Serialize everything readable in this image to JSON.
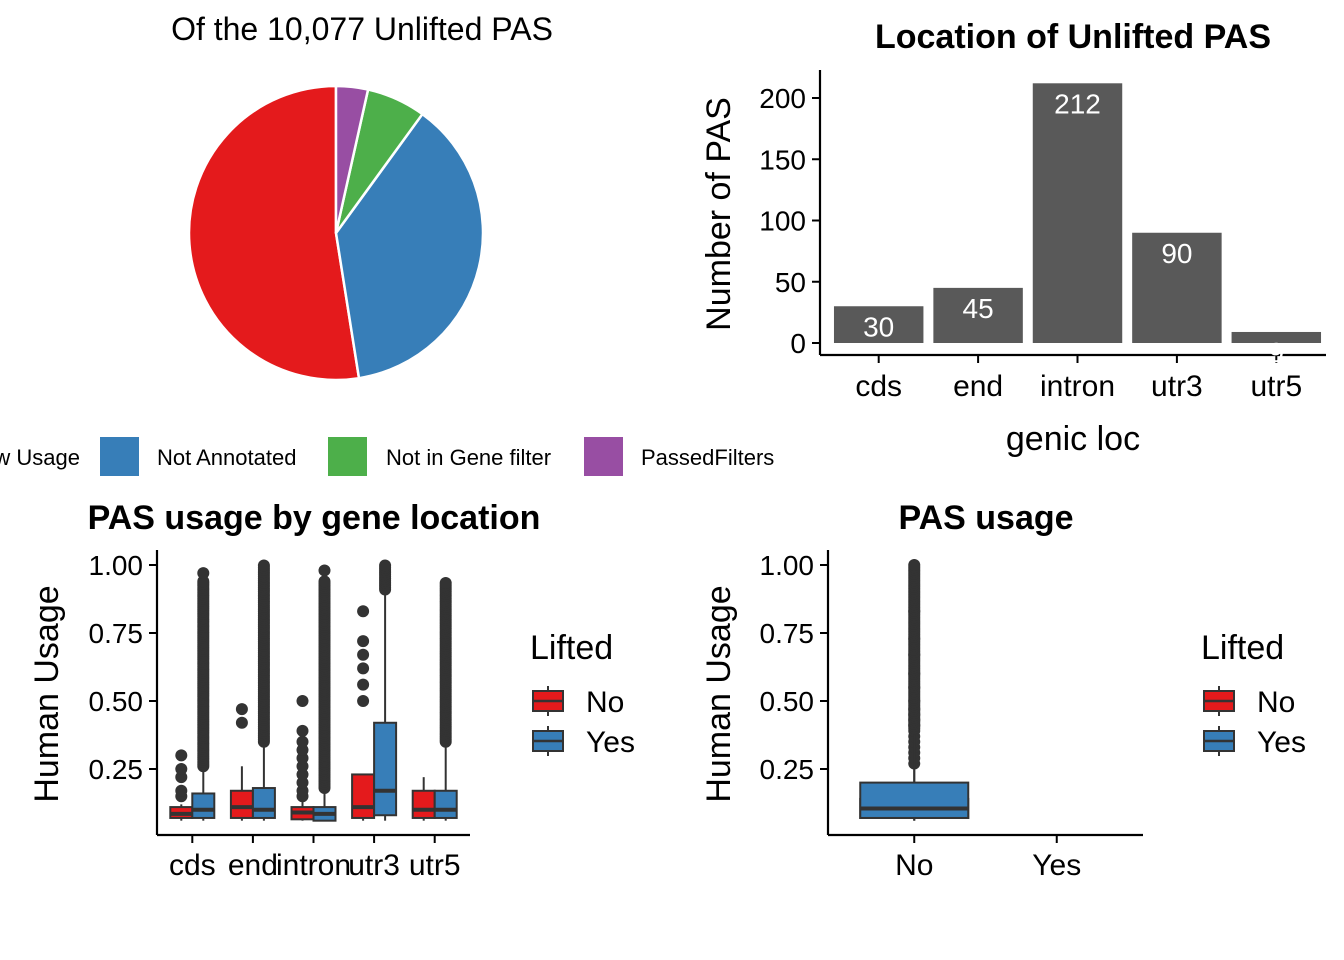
{
  "colors": {
    "red": "#E41A1C",
    "blue": "#377EB8",
    "green": "#4DAF4A",
    "purple": "#984EA3",
    "bar": "#595959",
    "outlier": "#333333"
  },
  "chart_data": [
    {
      "type": "pie",
      "title": "Of the 10,077 Unlifted PAS",
      "legend_position": "bottom",
      "labels": [
        "Low Usage",
        "Not Annotated",
        "Not in Gene filter",
        "PassedFilters"
      ],
      "legend_visible_labels": [
        "w Usage",
        "Not Annotated",
        "Not in Gene filter",
        "PassedFilters"
      ],
      "values": [
        52.5,
        37.5,
        6.5,
        3.5
      ]
    },
    {
      "type": "bar",
      "title": "Location of Unlifted PAS",
      "xlabel": "genic loc",
      "ylabel": "Number of PAS",
      "categories": [
        "cds",
        "end",
        "intron",
        "utr3",
        "utr5"
      ],
      "values": [
        30,
        45,
        212,
        90,
        9
      ],
      "ylim": [
        0,
        222
      ],
      "yticks": [
        0,
        50,
        100,
        150,
        200
      ],
      "data_labels": [
        "30",
        "45",
        "212",
        "90",
        "9"
      ]
    },
    {
      "type": "boxplot",
      "title": "PAS usage by gene location",
      "xlabel": "",
      "ylabel": "Human Usage",
      "categories": [
        "cds",
        "end",
        "intron",
        "utr3",
        "utr5"
      ],
      "ylim": [
        0.05,
        1.03
      ],
      "yticks": [
        "0.25",
        "0.50",
        "0.75",
        "1.00"
      ],
      "legend_title": "Lifted",
      "legend_position": "right",
      "series": [
        {
          "name": "No",
          "boxes": [
            {
              "q1": 0.07,
              "median": 0.085,
              "q3": 0.11,
              "whisker_low": 0.06,
              "whisker_high": 0.12,
              "outliers": [
                0.15,
                0.17,
                0.22,
                0.25,
                0.3
              ]
            },
            {
              "q1": 0.07,
              "median": 0.11,
              "q3": 0.17,
              "whisker_low": 0.06,
              "whisker_high": 0.26,
              "outliers": [
                0.42,
                0.47
              ]
            },
            {
              "q1": 0.065,
              "median": 0.09,
              "q3": 0.11,
              "whisker_low": 0.06,
              "whisker_high": 0.14,
              "outliers": [
                0.15,
                0.17,
                0.2,
                0.23,
                0.26,
                0.29,
                0.32,
                0.35,
                0.39,
                0.5
              ]
            },
            {
              "q1": 0.07,
              "median": 0.11,
              "q3": 0.23,
              "whisker_low": 0.06,
              "whisker_high": 0.23,
              "outliers": [
                0.5,
                0.56,
                0.62,
                0.67,
                0.72,
                0.83
              ]
            },
            {
              "q1": 0.07,
              "median": 0.1,
              "q3": 0.17,
              "whisker_low": 0.06,
              "whisker_high": 0.22,
              "outliers": []
            }
          ]
        },
        {
          "name": "Yes",
          "boxes": [
            {
              "q1": 0.07,
              "median": 0.1,
              "q3": 0.16,
              "whisker_low": 0.06,
              "whisker_high": 0.25,
              "outliers_from": 0.26,
              "outliers_to": 0.94,
              "extra_outliers": [
                0.97
              ]
            },
            {
              "q1": 0.07,
              "median": 0.1,
              "q3": 0.18,
              "whisker_low": 0.06,
              "whisker_high": 0.34,
              "outliers_from": 0.35,
              "outliers_to": 1.0,
              "extra_outliers": []
            },
            {
              "q1": 0.06,
              "median": 0.085,
              "q3": 0.11,
              "whisker_low": 0.06,
              "whisker_high": 0.17,
              "outliers_from": 0.18,
              "outliers_to": 0.94,
              "extra_outliers": [
                0.98
              ]
            },
            {
              "q1": 0.08,
              "median": 0.17,
              "q3": 0.42,
              "whisker_low": 0.06,
              "whisker_high": 0.9,
              "outliers_from": 0.91,
              "outliers_to": 1.0,
              "extra_outliers": []
            },
            {
              "q1": 0.07,
              "median": 0.1,
              "q3": 0.17,
              "whisker_low": 0.06,
              "whisker_high": 0.34,
              "outliers_from": 0.35,
              "outliers_to": 0.94,
              "extra_outliers": []
            }
          ]
        }
      ]
    },
    {
      "type": "boxplot",
      "title": "PAS usage",
      "xlabel": "",
      "ylabel": "Human Usage",
      "categories": [
        "No",
        "Yes"
      ],
      "ylim": [
        0.05,
        1.03
      ],
      "yticks": [
        "0.25",
        "0.50",
        "0.75",
        "1.00"
      ],
      "legend_title": "Lifted",
      "legend_position": "right",
      "series": [
        {
          "name": "No",
          "boxes": [
            {
              "q1": 0.07,
              "median": 0.09,
              "q3": 0.14,
              "whisker_low": 0.06,
              "whisker_high": 0.25,
              "outliers": [
                0.27,
                0.29,
                0.31,
                0.33,
                0.35,
                0.37,
                0.39,
                0.41,
                0.43,
                0.45,
                0.47,
                0.5,
                0.55,
                0.6,
                0.67,
                0.73,
                0.83
              ]
            }
          ]
        },
        {
          "name": "Yes",
          "boxes": [
            {
              "q1": 0.07,
              "median": 0.105,
              "q3": 0.2,
              "whisker_low": 0.06,
              "whisker_high": 0.39,
              "outliers_from": 0.4,
              "outliers_to": 1.0,
              "extra_outliers": []
            }
          ]
        }
      ]
    }
  ]
}
